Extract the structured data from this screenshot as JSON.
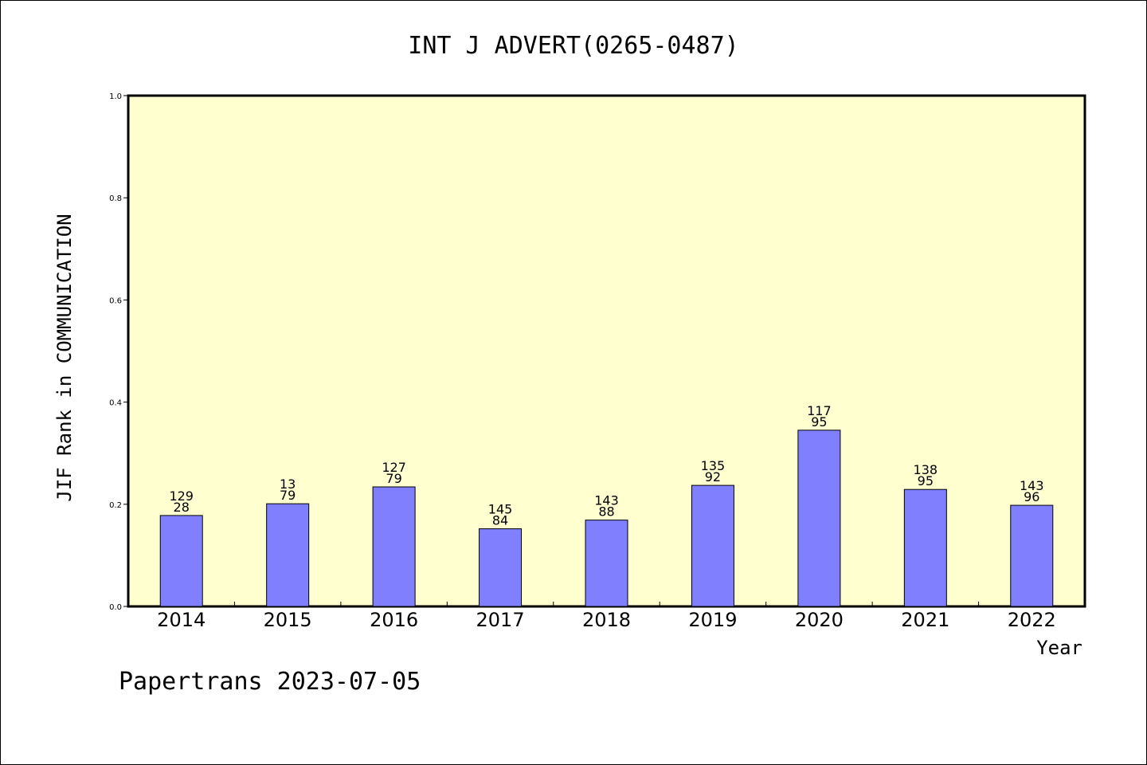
{
  "chart_data": {
    "type": "bar",
    "title": "INT J ADVERT(0265-0487)",
    "xlabel": "Year",
    "ylabel": "JIF Rank in COMMUNICATION",
    "ylim": [
      0,
      1.0
    ],
    "y_ticks": [
      "0.0",
      "0.2",
      "0.4",
      "0.6",
      "0.8",
      "1.0"
    ],
    "grid": false,
    "categories": [
      "2014",
      "2015",
      "2016",
      "2017",
      "2018",
      "2019",
      "2020",
      "2021",
      "2022"
    ],
    "values": [
      0.178,
      0.201,
      0.234,
      0.152,
      0.169,
      0.237,
      0.345,
      0.229,
      0.198
    ],
    "labels_top": [
      "129",
      "13",
      "127",
      "145",
      "143",
      "135",
      "117",
      "138",
      "143"
    ],
    "labels_bottom": [
      "28",
      "79",
      "79",
      "84",
      "88",
      "92",
      "95",
      "95",
      "96"
    ],
    "colors": {
      "bar": "#8080ff",
      "plot_background": "#ffffd0",
      "axis": "#000000"
    }
  },
  "footer": "Papertrans 2023-07-05"
}
